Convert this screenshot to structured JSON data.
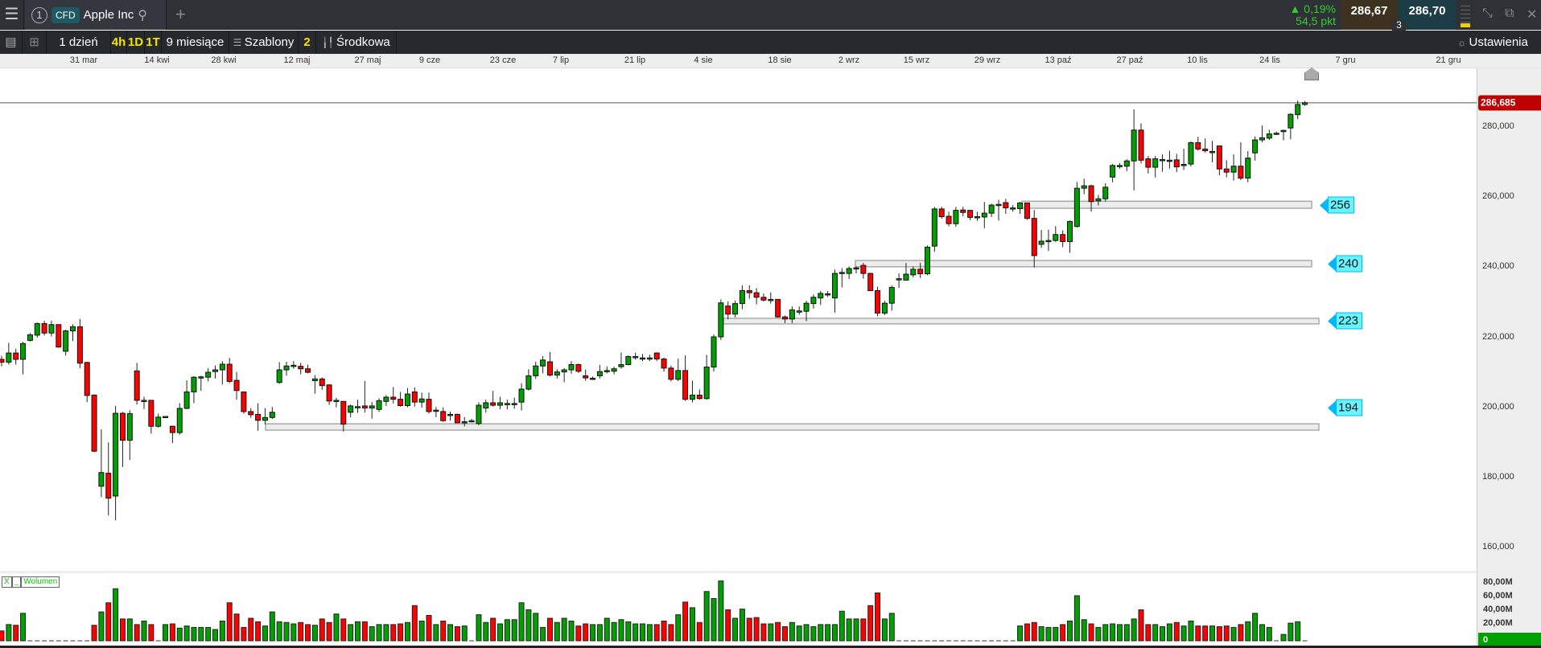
{
  "topbar": {
    "menu_icon": "hamburger-icon",
    "tab_number": "1",
    "badge": "CFD",
    "instrument": "Apple Inc",
    "change_pct": "▲ 0,19%",
    "change_pts": "54,5 pkt",
    "sell_price": "286,67",
    "buy_price": "286,70",
    "spread": "3"
  },
  "toolbar": {
    "interval": "1 dzień",
    "q1": "4h",
    "q2": "1D",
    "q3": "1T",
    "range": "9 miesiące",
    "templates": "Szablony",
    "count": "2",
    "chart_type": "Środkowa",
    "settings": "Ustawienia"
  },
  "colors": {
    "up": "#00a000",
    "down": "#ff0000",
    "level_tag": "#66f5ff",
    "current_price": "#c00000"
  },
  "volume": {
    "label": "Wolumen",
    "close": "X",
    "minimize": "_",
    "ticks": [
      "80,00M",
      "60,00M",
      "40,00M",
      "20,00M",
      "0"
    ]
  },
  "chart_data": {
    "type": "candlestick",
    "x_tick_labels": [
      "31 mar",
      "14 kwi",
      "28 kwi",
      "12 maj",
      "27 maj",
      "9 cze",
      "23 cze",
      "7 lip",
      "21 lip",
      "4 sie",
      "18 sie",
      "2 wrz",
      "15 wrz",
      "29 wrz",
      "13 paź",
      "27 paź",
      "10 lis",
      "24 lis",
      "7 gru",
      "21 gru"
    ],
    "y_ticks": [
      {
        "value": 280,
        "label": "280,000"
      },
      {
        "value": 260,
        "label": "260,000"
      },
      {
        "value": 240,
        "label": "240,000"
      },
      {
        "value": 220,
        "label": "220,000"
      },
      {
        "value": 200,
        "label": "200,000"
      },
      {
        "value": 180,
        "label": "180,000"
      },
      {
        "value": 160,
        "label": "160,000"
      }
    ],
    "ylim": [
      152,
      295
    ],
    "current_price": 286.685,
    "current_price_label": "286,685",
    "levels": [
      {
        "label": "256",
        "low": 256.6,
        "high": 258.6
      },
      {
        "label": "240",
        "low": 239.9,
        "high": 241.7
      },
      {
        "label": "223",
        "low": 223.6,
        "high": 225.2
      },
      {
        "label": "194",
        "low": 193.3,
        "high": 195.1
      }
    ],
    "ohlc": [
      [
        213.5,
        214.5,
        211.5,
        212.7
      ],
      [
        212.7,
        218.2,
        212,
        215.3
      ],
      [
        215.3,
        216.5,
        212,
        213.5
      ],
      [
        213.5,
        218.5,
        209.2,
        218
      ],
      [
        218.9,
        221,
        218.6,
        220.5
      ],
      [
        220.4,
        224,
        219.7,
        223.7
      ],
      [
        223.7,
        224.5,
        220.3,
        221
      ],
      [
        221,
        224.5,
        220,
        223.4
      ],
      [
        223.4,
        223.5,
        216.8,
        217
      ],
      [
        215.8,
        222,
        214.6,
        221.6
      ],
      [
        221.6,
        223.5,
        218.7,
        222.8
      ],
      [
        222.8,
        225,
        211,
        212.4
      ],
      [
        212.6,
        212.8,
        201.3,
        203.2
      ],
      [
        203.3,
        203.5,
        187,
        187.3
      ],
      [
        177.3,
        193.5,
        174.2,
        181.2
      ],
      [
        181,
        189.8,
        169,
        173.9
      ],
      [
        174.5,
        200.2,
        167.6,
        198.1
      ],
      [
        198.1,
        198.5,
        182.8,
        190.4
      ],
      [
        190.4,
        199,
        184.8,
        198
      ],
      [
        210.2,
        212.5,
        200.6,
        201.8
      ],
      [
        201.8,
        202.8,
        199.3,
        201.8
      ],
      [
        201.8,
        201.9,
        192.3,
        194.4
      ],
      [
        194.4,
        198,
        194,
        197
      ],
      [
        197.2,
        197.3,
        197.1,
        197.2
      ],
      [
        194.4,
        194.6,
        189.6,
        192.6
      ],
      [
        192.6,
        201,
        192,
        199.5
      ],
      [
        199.5,
        207.5,
        199.3,
        204.2
      ],
      [
        204.2,
        208.7,
        201,
        208.4
      ],
      [
        208.5,
        208.8,
        204.5,
        208.5
      ],
      [
        208.4,
        211,
        207.2,
        209.8
      ],
      [
        210,
        211.7,
        208,
        210.5
      ],
      [
        210.5,
        213,
        206.3,
        212.1
      ],
      [
        212.1,
        213.9,
        206.7,
        207.2
      ],
      [
        207.5,
        209.9,
        202,
        204.6
      ],
      [
        204.2,
        204.3,
        198,
        198.6
      ],
      [
        198.6,
        199.6,
        196.8,
        197.7
      ],
      [
        197.8,
        201,
        193.1,
        196.1
      ],
      [
        196.1,
        199.6,
        194.9,
        196.9
      ],
      [
        196.9,
        199.9,
        196.5,
        198.4
      ],
      [
        206.9,
        212.7,
        206.5,
        210.5
      ],
      [
        210.5,
        212.8,
        208.8,
        211.6
      ],
      [
        211.8,
        213,
        210.8,
        211.8
      ],
      [
        211.5,
        212.5,
        209.2,
        210.8
      ],
      [
        210.8,
        212,
        209.5,
        209.8
      ],
      [
        207.4,
        209,
        203.7,
        207.9
      ],
      [
        207.9,
        208.3,
        204.8,
        206
      ],
      [
        206.2,
        206.3,
        200.5,
        201.6
      ],
      [
        201.8,
        202.5,
        199.8,
        201.8
      ],
      [
        201.5,
        201.6,
        192.9,
        195
      ],
      [
        198.4,
        200.6,
        197,
        200.2
      ],
      [
        200,
        202,
        198.2,
        200
      ],
      [
        200.2,
        207.3,
        198.3,
        199.6
      ],
      [
        199.6,
        201.3,
        196.6,
        200.2
      ],
      [
        199.2,
        202.4,
        198.5,
        201.7
      ],
      [
        201.5,
        203.3,
        200.2,
        202.7
      ],
      [
        202.7,
        205.6,
        200.9,
        202.1
      ],
      [
        202.1,
        204.2,
        200,
        200.3
      ],
      [
        200.3,
        205.3,
        199.8,
        203.6
      ],
      [
        204.2,
        205.5,
        200,
        201.3
      ],
      [
        201.3,
        204,
        199.7,
        202.2
      ],
      [
        202.1,
        204,
        198,
        198.6
      ],
      [
        199,
        199.9,
        197,
        199
      ],
      [
        198.6,
        199.8,
        195.7,
        196
      ],
      [
        197.8,
        198.6,
        196,
        197.8
      ],
      [
        197.8,
        198,
        195.3,
        195.4
      ],
      [
        195.4,
        197,
        194.4,
        195.7
      ],
      [
        196,
        196.5,
        195.5,
        196
      ],
      [
        195.2,
        201.2,
        194.7,
        200.4
      ],
      [
        199.6,
        202,
        198.3,
        201.1
      ],
      [
        201.1,
        204.5,
        200,
        200.4
      ],
      [
        200.4,
        202.8,
        199.3,
        201.1
      ],
      [
        200.9,
        202,
        199.2,
        200.9
      ],
      [
        200.9,
        202.6,
        199.4,
        200.9
      ],
      [
        201.3,
        206.7,
        198.9,
        205
      ],
      [
        205,
        210.7,
        204.6,
        208.8
      ],
      [
        208.8,
        212.8,
        207.9,
        211.6
      ],
      [
        211.6,
        214.4,
        209.5,
        213.3
      ],
      [
        212.8,
        215.6,
        208.6,
        209
      ],
      [
        209,
        210.7,
        208,
        209.9
      ],
      [
        209.9,
        211,
        207,
        210.5
      ],
      [
        210.5,
        213,
        209.4,
        212
      ],
      [
        212,
        212.3,
        209.6,
        210.1
      ],
      [
        208.8,
        210.6,
        207.4,
        208.2
      ],
      [
        208.1,
        208.6,
        207.6,
        208.1
      ],
      [
        208.8,
        211.9,
        208,
        210
      ],
      [
        210.3,
        211.5,
        209.5,
        210.3
      ],
      [
        210.1,
        211.4,
        209.2,
        210.8
      ],
      [
        211.4,
        215.4,
        210.8,
        212
      ],
      [
        212,
        214.6,
        211.8,
        214.3
      ],
      [
        214.3,
        215.4,
        213.4,
        214.3
      ],
      [
        213.9,
        215,
        213,
        213.9
      ],
      [
        213.9,
        214.8,
        213,
        213.9
      ],
      [
        215.3,
        215.5,
        213,
        213.6
      ],
      [
        213.6,
        214,
        210,
        211
      ],
      [
        211,
        211.7,
        207.2,
        207.8
      ],
      [
        207.8,
        213.7,
        207.3,
        210.3
      ],
      [
        210.3,
        214.6,
        201.6,
        202.1
      ],
      [
        202.1,
        207.4,
        201.2,
        203.3
      ],
      [
        203.3,
        204.9,
        202,
        202.3
      ],
      [
        202.3,
        214.8,
        202,
        211.3
      ],
      [
        211.3,
        220.6,
        210,
        219.9
      ],
      [
        219.9,
        230.6,
        219,
        229.6
      ],
      [
        228.7,
        230,
        224.9,
        226.4
      ],
      [
        226.4,
        230.3,
        225.5,
        229.4
      ],
      [
        229.4,
        234.6,
        227.8,
        233.1
      ],
      [
        233.1,
        234.6,
        230.8,
        232.5
      ],
      [
        232.5,
        233.8,
        229.2,
        231.2
      ],
      [
        231.2,
        232.3,
        230,
        230.4
      ],
      [
        230.6,
        232.6,
        229.4,
        230.6
      ],
      [
        230.6,
        230.7,
        225.4,
        225.6
      ],
      [
        225.6,
        226,
        223.8,
        225
      ],
      [
        225,
        228.6,
        223.8,
        227.6
      ],
      [
        227.3,
        228.6,
        226.2,
        227.3
      ],
      [
        227.2,
        230.2,
        224.4,
        229.5
      ],
      [
        229.4,
        232,
        228,
        231.2
      ],
      [
        231,
        233,
        229,
        232.3
      ],
      [
        232.2,
        233,
        231.3,
        232.2
      ],
      [
        231,
        239.1,
        226.8,
        238
      ],
      [
        238.3,
        239.5,
        234,
        238.3
      ],
      [
        238,
        240,
        236.4,
        239.4
      ],
      [
        239.6,
        240,
        238,
        239.6
      ],
      [
        240.3,
        241,
        236.5,
        238
      ],
      [
        238,
        238.2,
        233,
        233.1
      ],
      [
        233.1,
        234.2,
        225.8,
        226.7
      ],
      [
        226.7,
        230.2,
        226.1,
        229.5
      ],
      [
        229.5,
        234.6,
        227.4,
        234
      ],
      [
        236.5,
        238,
        233.9,
        236.5
      ],
      [
        236.1,
        241,
        236,
        237.8
      ],
      [
        237.6,
        240,
        236.9,
        239.2
      ],
      [
        239.2,
        241,
        236.7,
        237.9
      ],
      [
        237.9,
        246,
        237.5,
        245.5
      ],
      [
        245.8,
        257,
        244.2,
        256.4
      ],
      [
        256.4,
        257,
        253.6,
        254.2
      ],
      [
        254.3,
        255.6,
        251.4,
        252.2
      ],
      [
        252.2,
        257,
        251.3,
        256
      ],
      [
        256.1,
        257,
        254.3,
        255.4
      ],
      [
        256,
        256.1,
        253.2,
        254
      ],
      [
        254.2,
        255.6,
        253,
        254.2
      ],
      [
        254.1,
        258.4,
        250.9,
        255.2
      ],
      [
        255.2,
        257.9,
        254.1,
        257.5
      ],
      [
        257.7,
        259,
        253.1,
        257.7
      ],
      [
        258.2,
        259.3,
        255,
        256.7
      ],
      [
        256.7,
        257.5,
        255.6,
        256.7
      ],
      [
        256.5,
        258.4,
        255,
        258.1
      ],
      [
        258.1,
        258.2,
        253.3,
        253.7
      ],
      [
        253.7,
        256.1,
        239.7,
        243.1
      ],
      [
        246.3,
        250.4,
        245.3,
        247.2
      ],
      [
        247.4,
        250.5,
        244.4,
        247.4
      ],
      [
        247.4,
        251.5,
        247,
        249.1
      ],
      [
        249.1,
        250.3,
        245.5,
        247.1
      ],
      [
        247.1,
        253.1,
        243.9,
        252.8
      ],
      [
        251.4,
        264.1,
        251.1,
        262.3
      ],
      [
        262.3,
        265,
        260.6,
        263
      ],
      [
        263,
        263.3,
        255.6,
        258.5
      ],
      [
        258.7,
        260.4,
        257.4,
        259.3
      ],
      [
        259.3,
        263.7,
        258.5,
        262.6
      ],
      [
        265.5,
        269.2,
        264,
        268.8
      ],
      [
        268.8,
        269.5,
        267.9,
        268.8
      ],
      [
        268.6,
        270.6,
        267.2,
        270.1
      ],
      [
        270.1,
        284.8,
        261.7,
        278.9
      ],
      [
        278.9,
        280.8,
        269.4,
        270.3
      ],
      [
        270.7,
        271.5,
        266.5,
        268.3
      ],
      [
        268.3,
        271.5,
        265.4,
        270.7
      ],
      [
        270.5,
        272,
        267,
        270.5
      ],
      [
        270.3,
        273,
        267.9,
        270.3
      ],
      [
        270.4,
        272.1,
        266.9,
        268.4
      ],
      [
        269.1,
        273.6,
        267.5,
        269.1
      ],
      [
        269.2,
        275.7,
        268.5,
        275.3
      ],
      [
        275.3,
        277,
        273,
        273.5
      ],
      [
        273.5,
        276.5,
        272.5,
        273
      ],
      [
        272.8,
        275.8,
        269.7,
        272.8
      ],
      [
        274.4,
        274.5,
        266,
        267.8
      ],
      [
        267.8,
        270.3,
        265.4,
        266.9
      ],
      [
        266.9,
        272,
        264.5,
        268.6
      ],
      [
        268.6,
        275.4,
        264.6,
        265.2
      ],
      [
        265.2,
        272.9,
        264,
        270.9
      ],
      [
        272.4,
        277.1,
        270.2,
        276.1
      ],
      [
        276.1,
        280.2,
        275.4,
        276.7
      ],
      [
        276.6,
        279,
        276.1,
        277.8
      ],
      [
        278,
        278.5,
        277.5,
        278
      ],
      [
        278.5,
        279,
        276,
        278.8
      ],
      [
        279.5,
        283.7,
        276.3,
        283.4
      ],
      [
        283.3,
        287.3,
        282,
        286.2
      ],
      [
        286.2,
        287.2,
        285.8,
        286.69
      ]
    ],
    "volume_millions": [
      14,
      23,
      22,
      39,
      0,
      0,
      0,
      0,
      0,
      0,
      0,
      0,
      0,
      22,
      41,
      54,
      74,
      31,
      31,
      23,
      28,
      23,
      0,
      23,
      24,
      18,
      21,
      19,
      19,
      19,
      16,
      28,
      54,
      38,
      19,
      32,
      27,
      21,
      41,
      27,
      26,
      24,
      26,
      23,
      22,
      31,
      26,
      38,
      31,
      23,
      27,
      27,
      20,
      23,
      23,
      23,
      24,
      26,
      50,
      28,
      36,
      23,
      28,
      23,
      20,
      21,
      0,
      37,
      26,
      32,
      24,
      30,
      30,
      54,
      44,
      39,
      19,
      32,
      26,
      32,
      28,
      21,
      24,
      23,
      23,
      32,
      26,
      30,
      27,
      24,
      24,
      23,
      23,
      28,
      23,
      37,
      55,
      47,
      26,
      70,
      60,
      85,
      44,
      32,
      45,
      32,
      33,
      24,
      24,
      26,
      20,
      26,
      21,
      23,
      20,
      23,
      23,
      23,
      42,
      31,
      31,
      31,
      50,
      68,
      31,
      39,
      0,
      0,
      0,
      0,
      0,
      0,
      0,
      0,
      0,
      0,
      0,
      0,
      0,
      0,
      0,
      0,
      0,
      21,
      24,
      26,
      20,
      19,
      19,
      23,
      28,
      64,
      30,
      24,
      19,
      23,
      24,
      23,
      23,
      31,
      44,
      23,
      23,
      20,
      24,
      26,
      21,
      28,
      21,
      21,
      21,
      20,
      21,
      19,
      23,
      27,
      39,
      23,
      19,
      0,
      9,
      25,
      27,
      0
    ]
  }
}
